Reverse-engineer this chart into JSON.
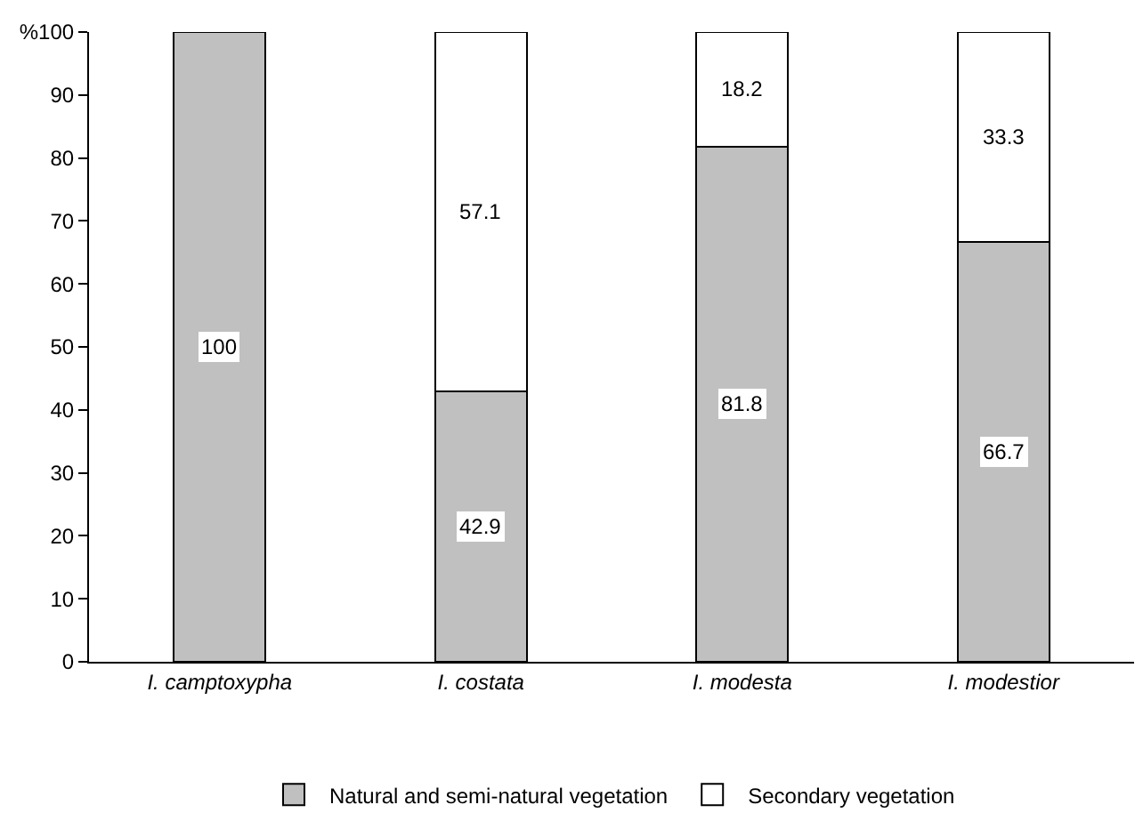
{
  "chart_data": {
    "type": "bar",
    "stacked": true,
    "categories": [
      "I. camptoxypha",
      "I. costata",
      "I. modesta",
      "I. modestior"
    ],
    "series": [
      {
        "name": "Natural and semi-natural vegetation",
        "color": "#c0c0c0",
        "values": [
          100,
          42.9,
          81.8,
          66.7
        ]
      },
      {
        "name": "Secondary vegetation",
        "color": "#ffffff",
        "values": [
          null,
          57.1,
          18.2,
          33.3
        ]
      }
    ],
    "ylim": [
      0,
      100
    ],
    "yticks": [
      0,
      10,
      20,
      30,
      40,
      50,
      60,
      70,
      80,
      90,
      {
        "value": 100,
        "label": "%100"
      }
    ],
    "data_labels": true,
    "grid": false,
    "legend": "bottom"
  }
}
